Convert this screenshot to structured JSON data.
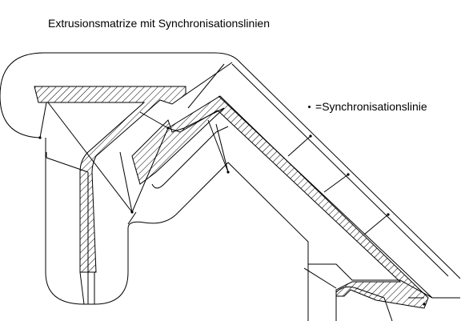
{
  "diagram": {
    "title": "Extrusionsmatrize mit Synchronisationslinien",
    "legend": {
      "symbol": "•",
      "separator": "=",
      "label": "Synchronisationslinie"
    }
  },
  "colors": {
    "background": "#ffffff",
    "line": "#000000"
  }
}
